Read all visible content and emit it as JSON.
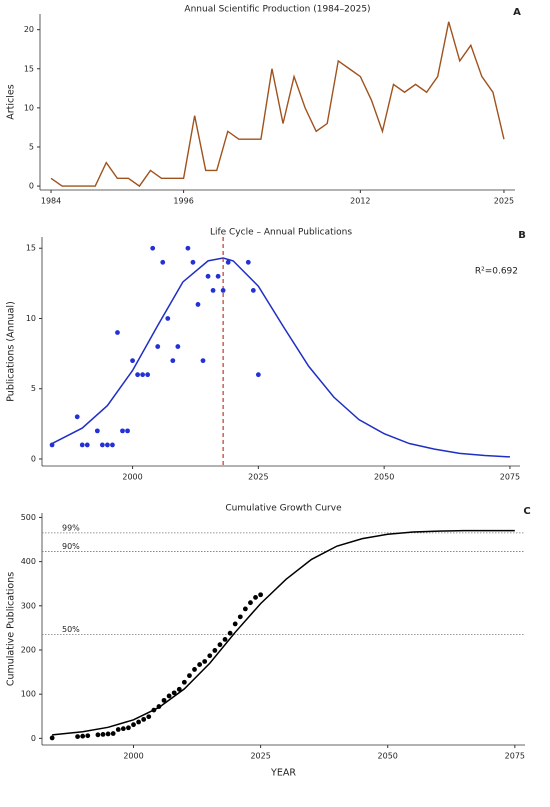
{
  "chart_data": [
    {
      "type": "line",
      "title": "Annual Scientific Production (1984–2025)",
      "panel": "A",
      "ylabel": "Articles",
      "color": "#a0521d",
      "x": [
        1984,
        1985,
        1986,
        1987,
        1988,
        1989,
        1990,
        1991,
        1992,
        1993,
        1994,
        1995,
        1996,
        1997,
        1998,
        1999,
        2000,
        2001,
        2002,
        2003,
        2004,
        2005,
        2006,
        2007,
        2008,
        2009,
        2010,
        2011,
        2012,
        2013,
        2014,
        2015,
        2016,
        2017,
        2018,
        2019,
        2020,
        2021,
        2022,
        2023,
        2024,
        2025
      ],
      "values": [
        1,
        0,
        0,
        0,
        0,
        3,
        1,
        1,
        0,
        2,
        1,
        1,
        1,
        9,
        2,
        2,
        7,
        6,
        6,
        6,
        15,
        8,
        14,
        10,
        7,
        8,
        16,
        15,
        14,
        11,
        7,
        13,
        12,
        13,
        12,
        14,
        21,
        16,
        18,
        14,
        12,
        6
      ],
      "xlim": [
        1983,
        2026
      ],
      "ylim": [
        -0.5,
        22
      ],
      "xticks": [
        1984,
        1996,
        2012,
        2025
      ],
      "yticks": [
        0,
        5,
        10,
        15,
        20
      ]
    },
    {
      "type": "scatter",
      "title": "Life Cycle – Annual Publications",
      "panel": "B",
      "ylabel": "Publications (Annual)",
      "color": "#2431d6",
      "x": [
        1984,
        1989,
        1990,
        1991,
        1993,
        1994,
        1995,
        1996,
        1997,
        1998,
        1999,
        2000,
        2001,
        2002,
        2003,
        2004,
        2005,
        2006,
        2007,
        2008,
        2009,
        2011,
        2012,
        2013,
        2014,
        2015,
        2016,
        2017,
        2018,
        2019,
        2023,
        2024,
        2025
      ],
      "values": [
        1,
        3,
        1,
        1,
        2,
        1,
        1,
        1,
        9,
        2,
        2,
        7,
        6,
        6,
        6,
        15,
        8,
        14,
        10,
        7,
        8,
        15,
        14,
        11,
        7,
        13,
        12,
        13,
        12,
        14,
        14,
        12,
        6
      ],
      "fit_color": "#1f2fc4",
      "fit_x": [
        1984,
        1990,
        1995,
        2000,
        2005,
        2010,
        2015,
        2018,
        2020,
        2025,
        2030,
        2035,
        2040,
        2045,
        2050,
        2055,
        2060,
        2065,
        2070,
        2075
      ],
      "fit_values": [
        1.1,
        2.2,
        3.8,
        6.3,
        9.5,
        12.6,
        14.1,
        14.3,
        14.1,
        12.3,
        9.4,
        6.6,
        4.4,
        2.8,
        1.8,
        1.1,
        0.7,
        0.4,
        0.25,
        0.15
      ],
      "vline": 2018,
      "vline_color": "#c0392b",
      "annotation": "R²=0.692",
      "xlim": [
        1982,
        2077
      ],
      "ylim": [
        -0.5,
        15.8
      ],
      "xticks": [
        2000,
        2025,
        2050,
        2075
      ],
      "yticks": [
        0,
        5,
        10,
        15
      ]
    },
    {
      "type": "scatter",
      "title": "Cumulative Growth Curve",
      "panel": "C",
      "ylabel": "Cumulative Publications",
      "xlabel": "YEAR",
      "color": "#000000",
      "x": [
        1984,
        1989,
        1990,
        1991,
        1993,
        1994,
        1995,
        1996,
        1997,
        1998,
        1999,
        2000,
        2001,
        2002,
        2003,
        2004,
        2005,
        2006,
        2007,
        2008,
        2009,
        2010,
        2011,
        2012,
        2013,
        2014,
        2015,
        2016,
        2017,
        2018,
        2019,
        2020,
        2021,
        2022,
        2023,
        2024,
        2025
      ],
      "values": [
        1,
        4,
        5,
        6,
        8,
        9,
        10,
        11,
        20,
        22,
        24,
        31,
        37,
        43,
        49,
        64,
        72,
        86,
        96,
        103,
        111,
        127,
        142,
        156,
        167,
        174,
        187,
        199,
        212,
        224,
        238,
        259,
        275,
        293,
        307,
        319,
        325
      ],
      "fit_color": "#000000",
      "fit_x": [
        1984,
        1990,
        1995,
        2000,
        2005,
        2010,
        2015,
        2020,
        2025,
        2030,
        2035,
        2040,
        2045,
        2050,
        2055,
        2060,
        2065,
        2070,
        2075
      ],
      "fit_values": [
        8,
        15,
        25,
        42,
        70,
        112,
        170,
        240,
        305,
        360,
        405,
        435,
        452,
        462,
        467,
        469,
        470,
        470,
        470
      ],
      "hlines": [
        {
          "value": 465,
          "label": "99%"
        },
        {
          "value": 423,
          "label": "90%"
        },
        {
          "value": 235,
          "label": "50%"
        }
      ],
      "xlim": [
        1982,
        2077
      ],
      "ylim": [
        -15,
        510
      ],
      "xticks": [
        2000,
        2025,
        2050,
        2075
      ],
      "yticks": [
        0,
        100,
        200,
        300,
        400,
        500
      ]
    }
  ]
}
